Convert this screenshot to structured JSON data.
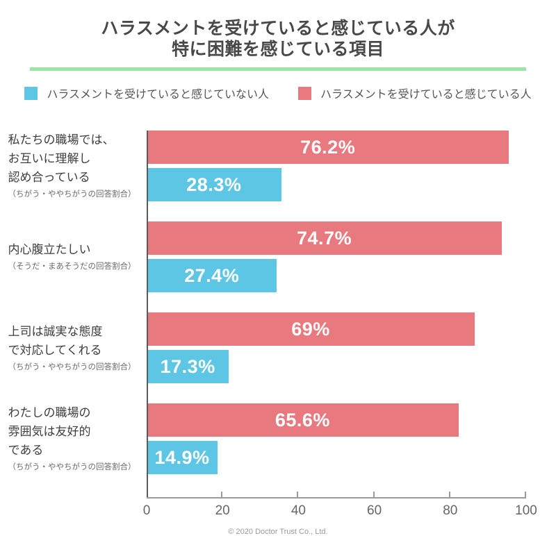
{
  "title": {
    "line1": "ハラスメントを受けていると感じている人が",
    "line2": "特に困難を感じている項目"
  },
  "style": {
    "accent_green": "#98e7a0",
    "bar_red": "#e8797e",
    "bar_blue": "#5ec6e5",
    "axis_gray": "#9a9a9a"
  },
  "legend": {
    "items": [
      {
        "id": "not-harassed",
        "label": "ハラスメントを受けていると感じていない人",
        "color": "#5ec6e5"
      },
      {
        "id": "harassed",
        "label": "ハラスメントを受けていると感じている人",
        "color": "#e8797e"
      }
    ]
  },
  "chart_data": {
    "type": "bar",
    "orientation": "horizontal",
    "title": "ハラスメントを受けていると感じている人が特に困難を感じている項目",
    "categories": [
      {
        "lines": [
          "私たちの職場では、",
          "お互いに理解し",
          "認め合っている"
        ],
        "note": "（ちがう・ややちがうの回答割合）"
      },
      {
        "lines": [
          "内心腹立たしい"
        ],
        "note": "（そうだ・まあそうだの回答割合）"
      },
      {
        "lines": [
          "上司は誠実な態度",
          "で対応してくれる"
        ],
        "note": "（ちがう・ややちがうの回答割合）"
      },
      {
        "lines": [
          "わたしの職場の",
          "雰囲気は友好的",
          "である"
        ],
        "note": "（ちがう・ややちがうの回答割合）"
      }
    ],
    "series": [
      {
        "name": "ハラスメントを受けていると感じている人",
        "color": "#e8797e",
        "values": [
          76.2,
          74.7,
          69,
          65.6
        ],
        "labels": [
          "76.2%",
          "74.7%",
          "69%",
          "65.6%"
        ]
      },
      {
        "name": "ハラスメントを受けていると感じていない人",
        "color": "#5ec6e5",
        "values": [
          28.3,
          27.4,
          17.3,
          14.9
        ],
        "labels": [
          "28.3%",
          "27.4%",
          "17.3%",
          "14.9%"
        ]
      }
    ],
    "x_axis": {
      "ticks": [
        0,
        20,
        40,
        60,
        80,
        100
      ],
      "range": [
        0,
        100
      ],
      "plot_scale_max": 79.8
    },
    "xlabel": "",
    "ylabel": "",
    "grid": false,
    "legend_position": "top"
  },
  "footer": {
    "copyright": "© 2020 Doctor Trust Co., Ltd."
  }
}
